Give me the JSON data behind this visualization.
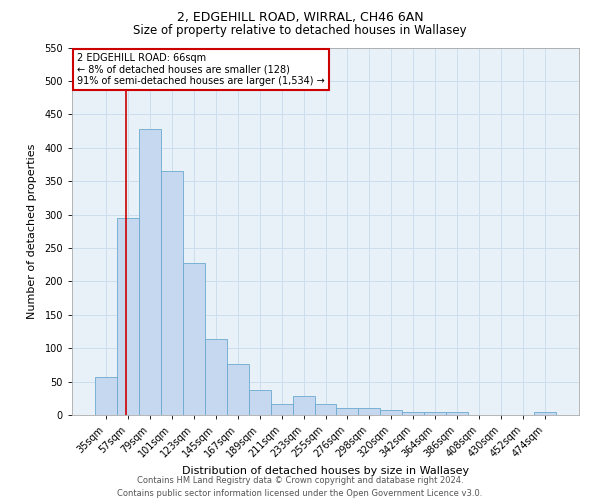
{
  "title1": "2, EDGEHILL ROAD, WIRRAL, CH46 6AN",
  "title2": "Size of property relative to detached houses in Wallasey",
  "xlabel": "Distribution of detached houses by size in Wallasey",
  "ylabel": "Number of detached properties",
  "categories": [
    "35sqm",
    "57sqm",
    "79sqm",
    "101sqm",
    "123sqm",
    "145sqm",
    "167sqm",
    "189sqm",
    "211sqm",
    "233sqm",
    "255sqm",
    "276sqm",
    "298sqm",
    "320sqm",
    "342sqm",
    "364sqm",
    "386sqm",
    "408sqm",
    "430sqm",
    "452sqm",
    "474sqm"
  ],
  "values": [
    57,
    295,
    428,
    365,
    228,
    113,
    76,
    37,
    17,
    29,
    16,
    10,
    10,
    8,
    4,
    4,
    4,
    0,
    0,
    0,
    5
  ],
  "bar_color": "#c5d8ef",
  "bar_edge_color": "#6baad0",
  "grid_color": "#ccdded",
  "annotation_text_line1": "2 EDGEHILL ROAD: 66sqm",
  "annotation_text_line2": "← 8% of detached houses are smaller (128)",
  "annotation_text_line3": "91% of semi-detached houses are larger (1,534) →",
  "annotation_box_color": "#ffffff",
  "annotation_box_edge_color": "#cc0000",
  "red_line_color": "#cc0000",
  "footer_text": "Contains HM Land Registry data © Crown copyright and database right 2024.\nContains public sector information licensed under the Open Government Licence v3.0.",
  "ylim": [
    0,
    550
  ],
  "yticks": [
    0,
    50,
    100,
    150,
    200,
    250,
    300,
    350,
    400,
    450,
    500,
    550
  ],
  "background_color": "#ffffff",
  "plot_bg_color": "#e8f0f8",
  "title1_fontsize": 9,
  "title2_fontsize": 8.5,
  "xlabel_fontsize": 8,
  "ylabel_fontsize": 8,
  "tick_fontsize": 7,
  "annotation_fontsize": 7,
  "footer_fontsize": 6
}
